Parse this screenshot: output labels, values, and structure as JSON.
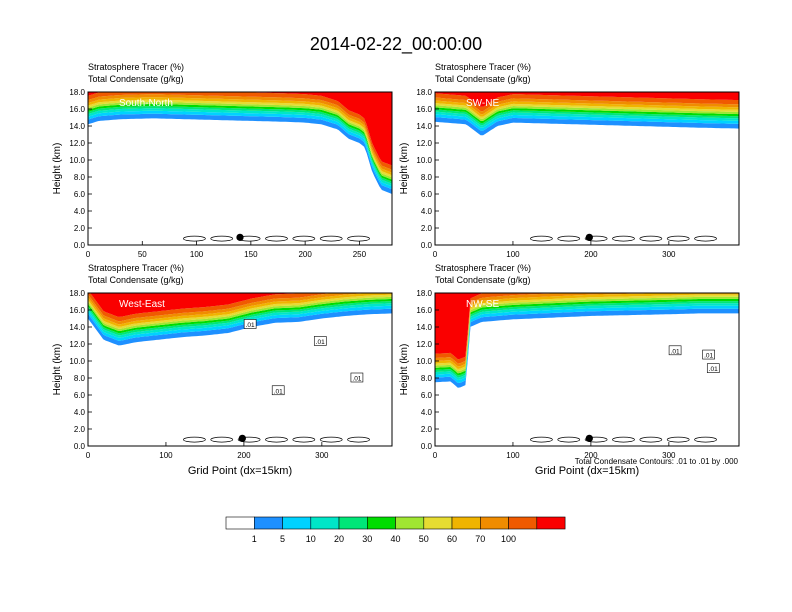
{
  "figure": {
    "title": "2014-02-22_00:00:00",
    "footnote": "Total Condensate Contours: .01 to .01 by .000"
  },
  "colors": {
    "white": "#ffffff",
    "blue1": "#1e90ff",
    "blue2": "#00d2ff",
    "cyan": "#00e6c8",
    "green1": "#00e678",
    "green2": "#00dc00",
    "lime": "#a0e632",
    "yellow": "#e6dc32",
    "gold": "#f0b400",
    "orange": "#f08c00",
    "redorange": "#f05a00",
    "red": "#fa0000"
  },
  "colorbar": {
    "labels": [
      "1",
      "5",
      "10",
      "20",
      "30",
      "40",
      "50",
      "60",
      "70",
      "100"
    ],
    "fill_colors": [
      "#ffffff",
      "#1e90ff",
      "#00d2ff",
      "#00e6c8",
      "#00e678",
      "#00dc00",
      "#a0e632",
      "#e6dc32",
      "#f0b400",
      "#f08c00",
      "#f05a00",
      "#fa0000"
    ]
  },
  "chart_data": [
    {
      "type": "heatmap",
      "panel_label": "South-North",
      "header_line1": "Stratosphere Tracer   (%)",
      "header_line2": "Total Condensate   (g/kg)",
      "ylabel": "Height (km)",
      "xlabel": "",
      "xlim": [
        0,
        280
      ],
      "ylim": [
        0,
        18
      ],
      "x_ticks": [
        "0",
        "50",
        "100",
        "150",
        "200",
        "250"
      ],
      "x_tick_values": [
        0,
        50,
        100,
        150,
        200,
        250
      ],
      "y_ticks": [
        "0.0",
        "2.0",
        "4.0",
        "6.0",
        "8.0",
        "10.0",
        "12.0",
        "14.0",
        "16.0",
        "18.0"
      ],
      "tracer_base_profile": {
        "x": [
          0,
          10,
          30,
          60,
          90,
          120,
          150,
          180,
          200,
          215,
          230,
          240,
          250,
          255,
          262,
          270,
          280
        ],
        "base_km": [
          14.2,
          14.6,
          14.8,
          14.9,
          14.8,
          14.7,
          14.6,
          14.5,
          14.4,
          14.2,
          13.6,
          12.5,
          12.0,
          11.5,
          8.5,
          6.5,
          6.0
        ]
      },
      "marker": {
        "x": 140,
        "y": 0.9
      },
      "contour_labels": []
    },
    {
      "type": "heatmap",
      "panel_label": "SW-NE",
      "header_line1": "Stratosphere Tracer   (%)",
      "header_line2": "Total Condensate   (g/kg)",
      "ylabel": "Height (km)",
      "xlabel": "",
      "xlim": [
        0,
        390
      ],
      "ylim": [
        0,
        18
      ],
      "x_ticks": [
        "0",
        "100",
        "200",
        "300"
      ],
      "x_tick_values": [
        0,
        100,
        200,
        300
      ],
      "y_ticks": [
        "0.0",
        "2.0",
        "4.0",
        "6.0",
        "8.0",
        "10.0",
        "12.0",
        "14.0",
        "16.0",
        "18.0"
      ],
      "tracer_base_profile": {
        "x": [
          0,
          40,
          60,
          80,
          100,
          140,
          180,
          220,
          260,
          300,
          340,
          390
        ],
        "base_km": [
          14.5,
          14.2,
          12.8,
          14.0,
          14.4,
          14.3,
          14.2,
          14.1,
          14.0,
          13.9,
          13.8,
          13.7
        ]
      },
      "marker": {
        "x": 198,
        "y": 0.9
      },
      "contour_labels": []
    },
    {
      "type": "heatmap",
      "panel_label": "West-East",
      "header_line1": "Stratosphere Tracer   (%)",
      "header_line2": "Total Condensate   (g/kg)",
      "ylabel": "Height (km)",
      "xlabel": "Grid Point (dx=15km)",
      "xlim": [
        0,
        390
      ],
      "ylim": [
        0,
        18
      ],
      "x_ticks": [
        "0",
        "100",
        "200",
        "300"
      ],
      "x_tick_values": [
        0,
        100,
        200,
        300
      ],
      "y_ticks": [
        "0.0",
        "2.0",
        "4.0",
        "6.0",
        "8.0",
        "10.0",
        "12.0",
        "14.0",
        "16.0",
        "18.0"
      ],
      "tracer_base_profile": {
        "x": [
          0,
          20,
          40,
          60,
          90,
          120,
          150,
          180,
          210,
          240,
          270,
          300,
          330,
          360,
          390
        ],
        "base_km": [
          15.0,
          12.5,
          11.8,
          12.2,
          12.5,
          12.8,
          13.0,
          13.3,
          14.0,
          14.5,
          14.6,
          15.0,
          15.3,
          15.5,
          15.6
        ]
      },
      "marker": {
        "x": 198,
        "y": 0.9
      },
      "contour_labels": [
        {
          "text": ".01",
          "x": 208,
          "y": 14.3
        },
        {
          "text": ".01",
          "x": 298,
          "y": 12.3
        },
        {
          "text": ".01",
          "x": 345,
          "y": 8.0
        },
        {
          "text": ".01",
          "x": 244,
          "y": 6.5
        }
      ]
    },
    {
      "type": "heatmap",
      "panel_label": "NW-SE",
      "header_line1": "Stratosphere Tracer   (%)",
      "header_line2": "Total Condensate   (g/kg)",
      "ylabel": "Height (km)",
      "xlabel": "Grid Point (dx=15km)",
      "xlim": [
        0,
        390
      ],
      "ylim": [
        0,
        18
      ],
      "x_ticks": [
        "0",
        "100",
        "200",
        "300"
      ],
      "x_tick_values": [
        0,
        100,
        200,
        300
      ],
      "y_ticks": [
        "0.0",
        "2.0",
        "4.0",
        "6.0",
        "8.0",
        "10.0",
        "12.0",
        "14.0",
        "16.0",
        "18.0"
      ],
      "tracer_base_profile": {
        "x": [
          0,
          20,
          30,
          40,
          45,
          60,
          100,
          150,
          200,
          250,
          300,
          340,
          390
        ],
        "base_km": [
          7.5,
          7.6,
          6.8,
          7.2,
          14.0,
          14.6,
          14.9,
          15.1,
          15.3,
          15.4,
          15.5,
          15.6,
          15.6
        ]
      },
      "marker": {
        "x": 198,
        "y": 0.9
      },
      "contour_labels": [
        {
          "text": ".01",
          "x": 308,
          "y": 11.2
        },
        {
          "text": ".01",
          "x": 351,
          "y": 10.7
        },
        {
          "text": ".01",
          "x": 357,
          "y": 9.1
        }
      ]
    }
  ]
}
